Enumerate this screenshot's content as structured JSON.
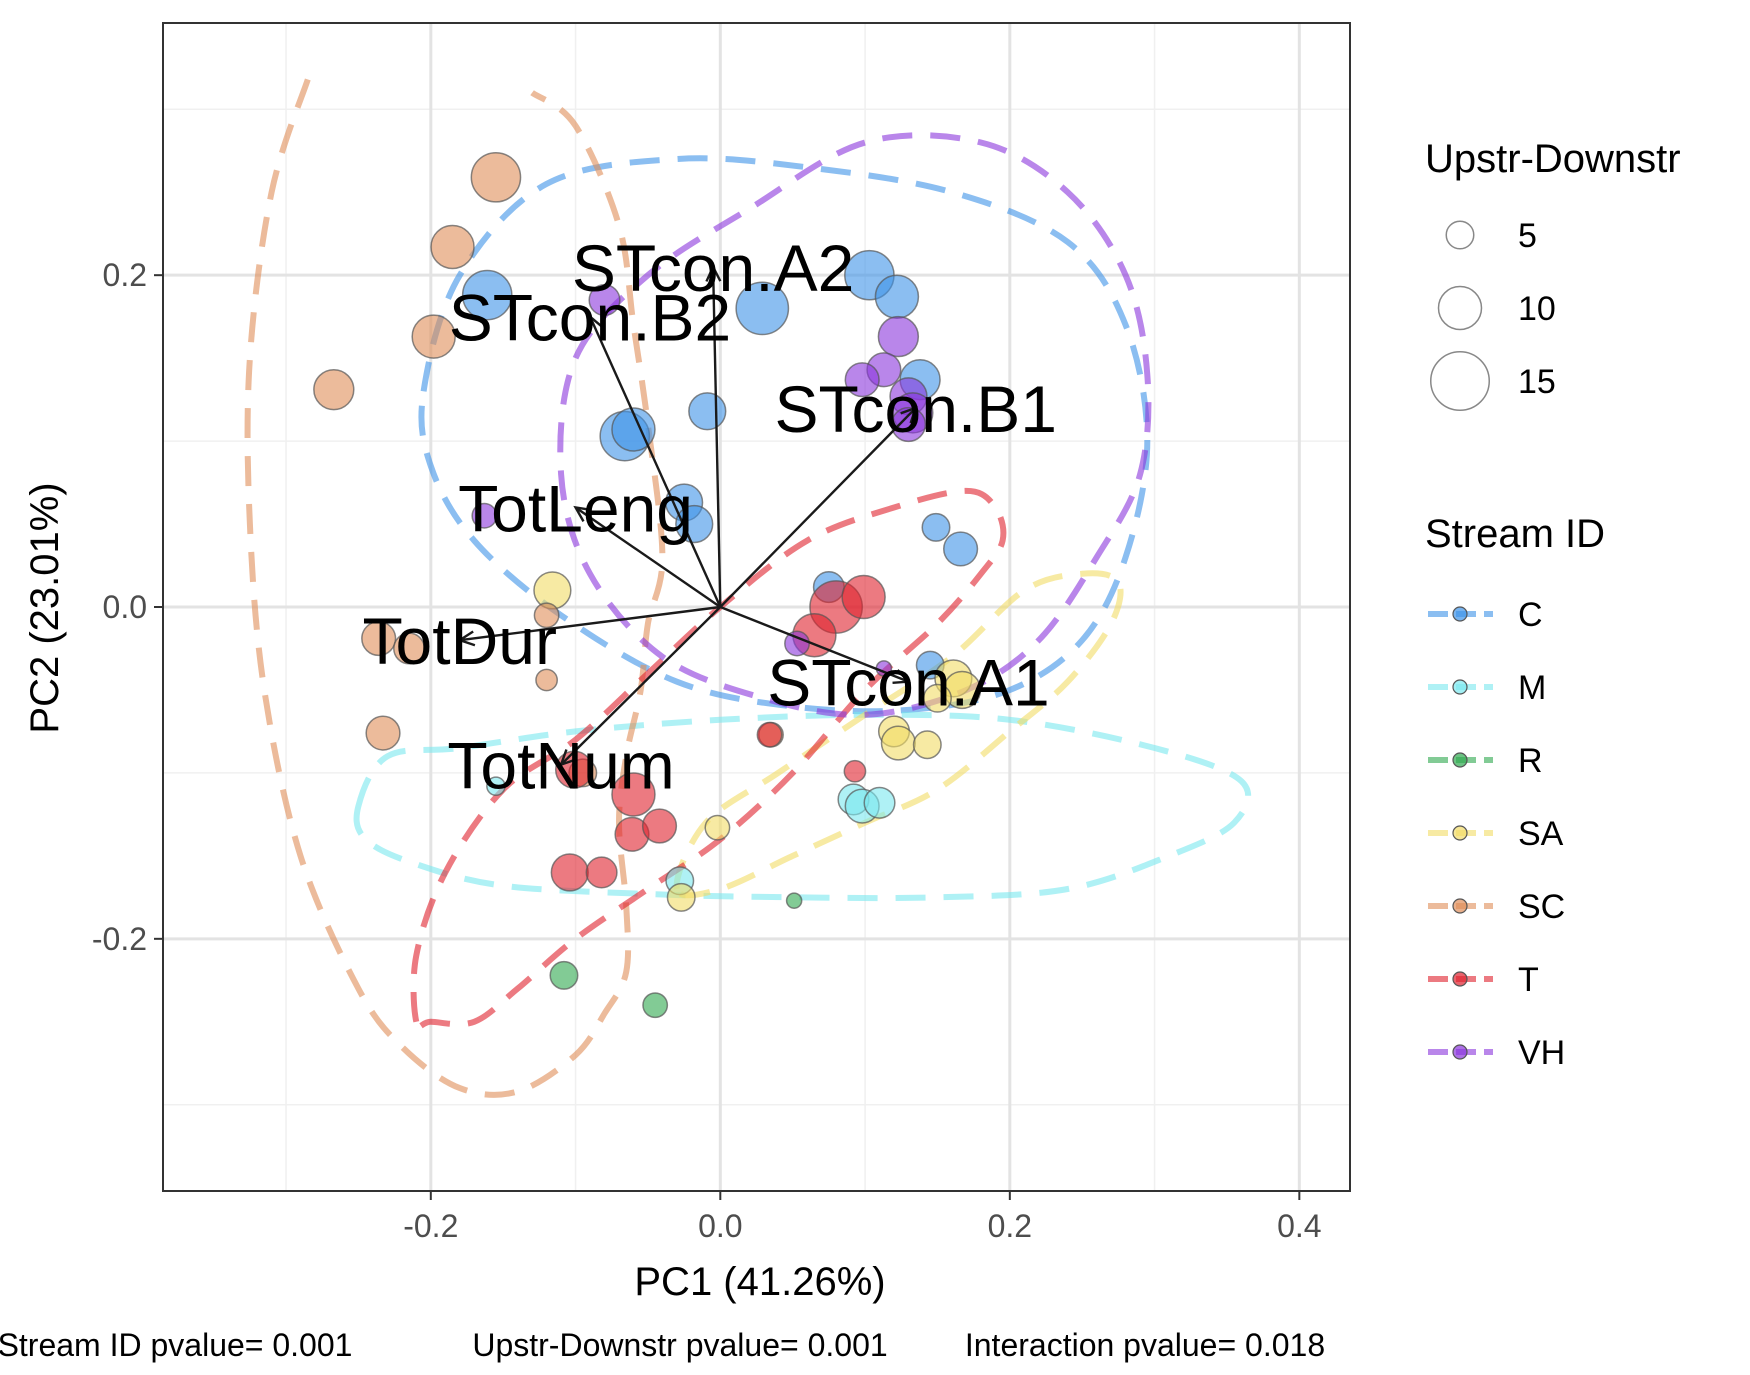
{
  "chart_data": {
    "type": "scatter",
    "title": "",
    "xlabel": "PC1 (41.26%)",
    "ylabel": "PC2 (23.01%)",
    "xlim": [
      -0.385,
      0.435
    ],
    "ylim": [
      -0.352,
      0.352
    ],
    "x_ticks": [
      -0.2,
      0.0,
      0.2,
      0.4
    ],
    "y_ticks": [
      -0.2,
      0.0,
      0.2
    ],
    "x_tick_labels": [
      "-0.2",
      "0.0",
      "0.2",
      "0.4"
    ],
    "y_tick_labels": [
      "-0.2",
      "0.0",
      "0.2"
    ],
    "grid": true,
    "legend_position": "right",
    "size_legend": {
      "title": "Upstr-Downstr",
      "entries": [
        {
          "label": "5",
          "value": 5
        },
        {
          "label": "10",
          "value": 10
        },
        {
          "label": "15",
          "value": 15
        }
      ]
    },
    "color_legend": {
      "title": "Stream ID",
      "entries": [
        {
          "label": "C",
          "color": "#3d93e8"
        },
        {
          "label": "M",
          "color": "#7ae8ef"
        },
        {
          "label": "R",
          "color": "#2ea84e"
        },
        {
          "label": "SA",
          "color": "#f2dc66"
        },
        {
          "label": "SC",
          "color": "#e08d58"
        },
        {
          "label": "T",
          "color": "#e0212d"
        },
        {
          "label": "VH",
          "color": "#8a35dc"
        }
      ]
    },
    "loadings": [
      {
        "label": "STcon.A2",
        "x": -0.005,
        "y": 0.205
      },
      {
        "label": "STcon.B2",
        "x": -0.09,
        "y": 0.175
      },
      {
        "label": "STcon.B1",
        "x": 0.135,
        "y": 0.12
      },
      {
        "label": "TotLeng",
        "x": -0.1,
        "y": 0.06
      },
      {
        "label": "TotDur",
        "x": -0.18,
        "y": -0.02
      },
      {
        "label": "STcon.A1",
        "x": 0.13,
        "y": -0.045
      },
      {
        "label": "TotNum",
        "x": -0.11,
        "y": -0.095
      }
    ],
    "series": [
      {
        "name": "C",
        "points": [
          {
            "x": -0.161,
            "y": 0.188,
            "size": 12
          },
          {
            "x": -0.066,
            "y": 0.103,
            "size": 12
          },
          {
            "x": -0.06,
            "y": 0.107,
            "size": 10
          },
          {
            "x": -0.009,
            "y": 0.118,
            "size": 8
          },
          {
            "x": -0.025,
            "y": 0.063,
            "size": 8
          },
          {
            "x": -0.018,
            "y": 0.05,
            "size": 8
          },
          {
            "x": 0.029,
            "y": 0.18,
            "size": 13
          },
          {
            "x": 0.103,
            "y": 0.2,
            "size": 12
          },
          {
            "x": 0.122,
            "y": 0.187,
            "size": 10
          },
          {
            "x": 0.138,
            "y": 0.137,
            "size": 9
          },
          {
            "x": 0.149,
            "y": 0.048,
            "size": 5
          },
          {
            "x": 0.166,
            "y": 0.035,
            "size": 7
          },
          {
            "x": 0.075,
            "y": 0.012,
            "size": 6
          },
          {
            "x": 0.145,
            "y": -0.035,
            "size": 5
          }
        ]
      },
      {
        "name": "M",
        "points": [
          {
            "x": 0.092,
            "y": -0.116,
            "size": 6
          },
          {
            "x": 0.098,
            "y": -0.12,
            "size": 7
          },
          {
            "x": 0.11,
            "y": -0.118,
            "size": 6
          },
          {
            "x": -0.028,
            "y": -0.165,
            "size": 5
          },
          {
            "x": -0.155,
            "y": -0.108,
            "size": 2
          }
        ]
      },
      {
        "name": "R",
        "points": [
          {
            "x": -0.108,
            "y": -0.222,
            "size": 5
          },
          {
            "x": -0.045,
            "y": -0.24,
            "size": 4
          },
          {
            "x": 0.051,
            "y": -0.177,
            "size": 1
          }
        ]
      },
      {
        "name": "SA",
        "points": [
          {
            "x": -0.116,
            "y": 0.01,
            "size": 8
          },
          {
            "x": 0.161,
            "y": -0.043,
            "size": 8
          },
          {
            "x": 0.167,
            "y": -0.05,
            "size": 8
          },
          {
            "x": 0.15,
            "y": -0.055,
            "size": 5
          },
          {
            "x": 0.12,
            "y": -0.075,
            "size": 6
          },
          {
            "x": 0.123,
            "y": -0.082,
            "size": 7
          },
          {
            "x": 0.143,
            "y": -0.083,
            "size": 5
          },
          {
            "x": -0.002,
            "y": -0.133,
            "size": 4
          },
          {
            "x": -0.027,
            "y": -0.175,
            "size": 5
          }
        ]
      },
      {
        "name": "SC",
        "points": [
          {
            "x": -0.155,
            "y": 0.259,
            "size": 12
          },
          {
            "x": -0.185,
            "y": 0.217,
            "size": 10
          },
          {
            "x": -0.198,
            "y": 0.163,
            "size": 10
          },
          {
            "x": -0.267,
            "y": 0.131,
            "size": 9
          },
          {
            "x": -0.236,
            "y": -0.019,
            "size": 7
          },
          {
            "x": -0.215,
            "y": -0.025,
            "size": 6
          },
          {
            "x": -0.12,
            "y": -0.005,
            "size": 4
          },
          {
            "x": -0.12,
            "y": -0.044,
            "size": 3
          },
          {
            "x": -0.233,
            "y": -0.076,
            "size": 7
          },
          {
            "x": -0.095,
            "y": -0.1,
            "size": 5
          },
          {
            "x": 0.035,
            "y": -0.077,
            "size": 4
          }
        ]
      },
      {
        "name": "T",
        "points": [
          {
            "x": 0.08,
            "y": 0.0,
            "size": 13
          },
          {
            "x": 0.099,
            "y": 0.006,
            "size": 10
          },
          {
            "x": 0.065,
            "y": -0.017,
            "size": 10
          },
          {
            "x": -0.101,
            "y": -0.098,
            "size": 8
          },
          {
            "x": -0.06,
            "y": -0.113,
            "size": 10
          },
          {
            "x": -0.061,
            "y": -0.137,
            "size": 7
          },
          {
            "x": -0.042,
            "y": -0.132,
            "size": 7
          },
          {
            "x": -0.104,
            "y": -0.16,
            "size": 8
          },
          {
            "x": -0.082,
            "y": -0.16,
            "size": 6
          },
          {
            "x": 0.093,
            "y": -0.099,
            "size": 3
          },
          {
            "x": 0.034,
            "y": -0.077,
            "size": 4
          }
        ]
      },
      {
        "name": "VH",
        "points": [
          {
            "x": -0.08,
            "y": 0.185,
            "size": 6
          },
          {
            "x": 0.123,
            "y": 0.163,
            "size": 9
          },
          {
            "x": 0.113,
            "y": 0.143,
            "size": 7
          },
          {
            "x": 0.098,
            "y": 0.137,
            "size": 7
          },
          {
            "x": 0.13,
            "y": 0.127,
            "size": 8
          },
          {
            "x": 0.133,
            "y": 0.117,
            "size": 9
          },
          {
            "x": 0.13,
            "y": 0.11,
            "size": 7
          },
          {
            "x": -0.163,
            "y": 0.055,
            "size": 4
          },
          {
            "x": 0.053,
            "y": -0.022,
            "size": 4
          },
          {
            "x": 0.113,
            "y": -0.037,
            "size": 1
          }
        ]
      }
    ],
    "ellipses": [
      {
        "name": "C",
        "path": [
          [
            -0.205,
            0.13
          ],
          [
            -0.18,
            0.2
          ],
          [
            -0.12,
            0.255
          ],
          [
            -0.03,
            0.27
          ],
          [
            0.06,
            0.265
          ],
          [
            0.16,
            0.25
          ],
          [
            0.24,
            0.22
          ],
          [
            0.28,
            0.17
          ],
          [
            0.295,
            0.1
          ],
          [
            0.28,
            0.03
          ],
          [
            0.25,
            -0.02
          ],
          [
            0.2,
            -0.05
          ],
          [
            0.13,
            -0.062
          ],
          [
            0.05,
            -0.06
          ],
          [
            -0.03,
            -0.045
          ],
          [
            -0.11,
            -0.005
          ],
          [
            -0.17,
            0.04
          ],
          [
            -0.2,
            0.085
          ]
        ],
        "closed": true
      },
      {
        "name": "M",
        "path": [
          [
            -0.25,
            -0.12
          ],
          [
            -0.23,
            -0.09
          ],
          [
            -0.18,
            -0.085
          ],
          [
            -0.1,
            -0.075
          ],
          [
            0.0,
            -0.068
          ],
          [
            0.1,
            -0.065
          ],
          [
            0.2,
            -0.068
          ],
          [
            0.3,
            -0.085
          ],
          [
            0.36,
            -0.105
          ],
          [
            0.355,
            -0.13
          ],
          [
            0.31,
            -0.15
          ],
          [
            0.24,
            -0.17
          ],
          [
            0.15,
            -0.175
          ],
          [
            0.05,
            -0.175
          ],
          [
            -0.05,
            -0.173
          ],
          [
            -0.15,
            -0.168
          ],
          [
            -0.21,
            -0.155
          ],
          [
            -0.245,
            -0.14
          ]
        ],
        "closed": true
      },
      {
        "name": "SA",
        "path": [
          [
            -0.03,
            -0.17
          ],
          [
            -0.01,
            -0.13
          ],
          [
            0.04,
            -0.1
          ],
          [
            0.1,
            -0.065
          ],
          [
            0.16,
            -0.03
          ],
          [
            0.21,
            0.01
          ],
          [
            0.25,
            0.02
          ],
          [
            0.275,
            0.015
          ],
          [
            0.27,
            -0.01
          ],
          [
            0.24,
            -0.045
          ],
          [
            0.2,
            -0.075
          ],
          [
            0.15,
            -0.11
          ],
          [
            0.1,
            -0.13
          ],
          [
            0.05,
            -0.15
          ],
          [
            0.0,
            -0.17
          ]
        ],
        "closed": true
      },
      {
        "name": "SC",
        "path": [
          [
            -0.285,
            0.318
          ],
          [
            -0.31,
            0.25
          ],
          [
            -0.325,
            0.15
          ],
          [
            -0.325,
            0.05
          ],
          [
            -0.315,
            -0.05
          ],
          [
            -0.29,
            -0.15
          ],
          [
            -0.25,
            -0.23
          ],
          [
            -0.22,
            -0.265
          ],
          [
            -0.18,
            -0.29
          ],
          [
            -0.14,
            -0.292
          ],
          [
            -0.1,
            -0.27
          ],
          [
            -0.08,
            -0.245
          ],
          [
            -0.065,
            -0.22
          ],
          [
            -0.065,
            -0.18
          ],
          [
            -0.07,
            -0.13
          ],
          [
            -0.065,
            -0.09
          ],
          [
            -0.055,
            -0.05
          ],
          [
            -0.05,
            -0.01
          ],
          [
            -0.04,
            0.03
          ],
          [
            -0.05,
            0.11
          ],
          [
            -0.06,
            0.17
          ],
          [
            -0.07,
            0.23
          ],
          [
            -0.1,
            0.29
          ],
          [
            -0.13,
            0.31
          ]
        ],
        "closed": false
      },
      {
        "name": "T",
        "path": [
          [
            -0.21,
            -0.25
          ],
          [
            -0.21,
            -0.21
          ],
          [
            -0.19,
            -0.16
          ],
          [
            -0.15,
            -0.11
          ],
          [
            -0.1,
            -0.08
          ],
          [
            -0.05,
            -0.04
          ],
          [
            0.0,
            0.0
          ],
          [
            0.06,
            0.04
          ],
          [
            0.12,
            0.06
          ],
          [
            0.17,
            0.07
          ],
          [
            0.19,
            0.06
          ],
          [
            0.195,
            0.04
          ],
          [
            0.18,
            0.02
          ],
          [
            0.15,
            -0.01
          ],
          [
            0.1,
            -0.05
          ],
          [
            0.05,
            -0.1
          ],
          [
            0.0,
            -0.14
          ],
          [
            -0.05,
            -0.17
          ],
          [
            -0.1,
            -0.2
          ],
          [
            -0.14,
            -0.23
          ],
          [
            -0.17,
            -0.25
          ],
          [
            -0.2,
            -0.25
          ]
        ],
        "closed": true
      },
      {
        "name": "VH",
        "path": [
          [
            -0.1,
            0.15
          ],
          [
            -0.05,
            0.2
          ],
          [
            0.02,
            0.24
          ],
          [
            0.1,
            0.28
          ],
          [
            0.18,
            0.28
          ],
          [
            0.24,
            0.25
          ],
          [
            0.28,
            0.2
          ],
          [
            0.295,
            0.14
          ],
          [
            0.29,
            0.08
          ],
          [
            0.26,
            0.03
          ],
          [
            0.22,
            -0.02
          ],
          [
            0.17,
            -0.05
          ],
          [
            0.1,
            -0.065
          ],
          [
            0.03,
            -0.055
          ],
          [
            -0.04,
            -0.03
          ],
          [
            -0.09,
            0.02
          ],
          [
            -0.11,
            0.08
          ]
        ],
        "closed": true
      }
    ]
  },
  "footnote": {
    "stream_id": "Stream ID pvalue= 0.001",
    "upstr_downstr": "Upstr-Downstr pvalue= 0.001",
    "interaction": "Interaction pvalue= 0.018"
  }
}
